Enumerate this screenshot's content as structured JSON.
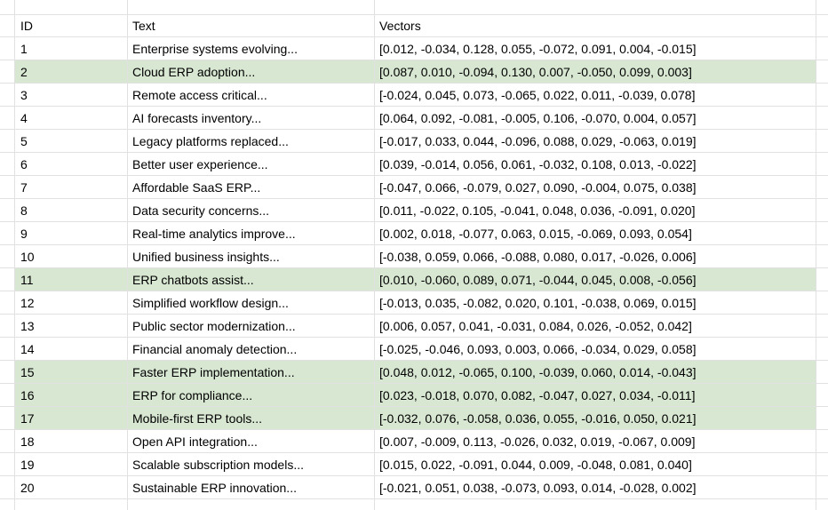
{
  "colors": {
    "highlight_green": "#d8e7d2",
    "gridline": "#e1e1e1",
    "text": "#000000",
    "background": "#ffffff"
  },
  "table": {
    "columns": [
      "ID",
      "Text",
      "Vectors"
    ],
    "highlighted_ids": [
      2,
      11,
      15,
      16,
      17
    ],
    "rows": [
      {
        "id": "1",
        "text": "Enterprise systems evolving...",
        "vectors": "[0.012, -0.034, 0.128, 0.055, -0.072, 0.091, 0.004, -0.015]",
        "highlighted": false
      },
      {
        "id": "2",
        "text": "Cloud ERP adoption...",
        "vectors": "[0.087, 0.010, -0.094, 0.130, 0.007, -0.050, 0.099, 0.003]",
        "highlighted": true
      },
      {
        "id": "3",
        "text": "Remote access critical...",
        "vectors": "[-0.024, 0.045, 0.073, -0.065, 0.022, 0.011, -0.039, 0.078]",
        "highlighted": false
      },
      {
        "id": "4",
        "text": "AI forecasts inventory...",
        "vectors": "[0.064, 0.092, -0.081, -0.005, 0.106, -0.070, 0.004, 0.057]",
        "highlighted": false
      },
      {
        "id": "5",
        "text": "Legacy platforms replaced...",
        "vectors": "[-0.017, 0.033, 0.044, -0.096, 0.088, 0.029, -0.063, 0.019]",
        "highlighted": false
      },
      {
        "id": "6",
        "text": "Better user experience...",
        "vectors": "[0.039, -0.014, 0.056, 0.061, -0.032, 0.108, 0.013, -0.022]",
        "highlighted": false
      },
      {
        "id": "7",
        "text": "Affordable SaaS ERP...",
        "vectors": "[-0.047, 0.066, -0.079, 0.027, 0.090, -0.004, 0.075, 0.038]",
        "highlighted": false
      },
      {
        "id": "8",
        "text": "Data security concerns...",
        "vectors": "[0.011, -0.022, 0.105, -0.041, 0.048, 0.036, -0.091, 0.020]",
        "highlighted": false
      },
      {
        "id": "9",
        "text": "Real-time analytics improve...",
        "vectors": "[0.002, 0.018, -0.077, 0.063, 0.015, -0.069, 0.093, 0.054]",
        "highlighted": false
      },
      {
        "id": "10",
        "text": "Unified business insights...",
        "vectors": "[-0.038, 0.059, 0.066, -0.088, 0.080, 0.017, -0.026, 0.006]",
        "highlighted": false
      },
      {
        "id": "11",
        "text": "ERP chatbots assist...",
        "vectors": "[0.010, -0.060, 0.089, 0.071, -0.044, 0.045, 0.008, -0.056]",
        "highlighted": true
      },
      {
        "id": "12",
        "text": "Simplified workflow design...",
        "vectors": "[-0.013, 0.035, -0.082, 0.020, 0.101, -0.038, 0.069, 0.015]",
        "highlighted": false
      },
      {
        "id": "13",
        "text": "Public sector modernization...",
        "vectors": "[0.006, 0.057, 0.041, -0.031, 0.084, 0.026, -0.052, 0.042]",
        "highlighted": false
      },
      {
        "id": "14",
        "text": "Financial anomaly detection...",
        "vectors": "[-0.025, -0.046, 0.093, 0.003, 0.066, -0.034, 0.029, 0.058]",
        "highlighted": false
      },
      {
        "id": "15",
        "text": "Faster ERP implementation...",
        "vectors": "[0.048, 0.012, -0.065, 0.100, -0.039, 0.060, 0.014, -0.043]",
        "highlighted": true
      },
      {
        "id": "16",
        "text": "ERP for compliance...",
        "vectors": "[0.023, -0.018, 0.070, 0.082, -0.047, 0.027, 0.034, -0.011]",
        "highlighted": true
      },
      {
        "id": "17",
        "text": "Mobile-first ERP tools...",
        "vectors": "[-0.032, 0.076, -0.058, 0.036, 0.055, -0.016, 0.050, 0.021]",
        "highlighted": true
      },
      {
        "id": "18",
        "text": "Open API integration...",
        "vectors": "[0.007, -0.009, 0.113, -0.026, 0.032, 0.019, -0.067, 0.009]",
        "highlighted": false
      },
      {
        "id": "19",
        "text": "Scalable subscription models...",
        "vectors": "[0.015, 0.022, -0.091, 0.044, 0.009, -0.048, 0.081, 0.040]",
        "highlighted": false
      },
      {
        "id": "20",
        "text": "Sustainable ERP innovation...",
        "vectors": "[-0.021, 0.051, 0.038, -0.073, 0.093, 0.014, -0.028, 0.002]",
        "highlighted": false
      }
    ]
  }
}
